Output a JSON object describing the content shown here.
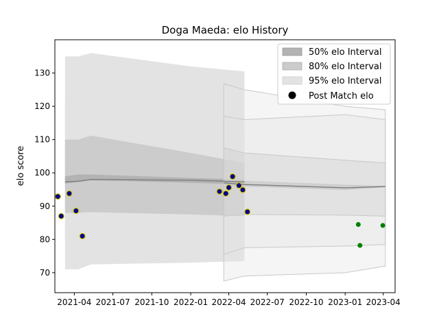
{
  "chart_data": {
    "type": "area",
    "title": "Doga Maeda: elo History",
    "xlabel": "",
    "ylabel": "elo score",
    "xlim": [
      "2021-02-14",
      "2023-04-29"
    ],
    "ylim": [
      64,
      140
    ],
    "x_ticks": [
      "2021-04",
      "2021-07",
      "2021-10",
      "2022-01",
      "2022-04",
      "2022-07",
      "2022-10",
      "2023-01",
      "2023-04"
    ],
    "y_ticks": [
      70,
      80,
      90,
      100,
      110,
      120,
      130
    ],
    "grid": false,
    "legend_position": "top-right",
    "legend": [
      "50% elo Interval",
      "80% elo Interval",
      "95% elo Interval",
      "Post Match elo"
    ],
    "colors": {
      "band50": "#b3b3b3",
      "band80": "#cccccc",
      "band95": "#e3e3e3",
      "mean_line": "#808080",
      "match_point": "#00008b",
      "match_edge": "#d4c400",
      "future_point": "#008000"
    },
    "intervals": {
      "x": [
        "2021-03-10",
        "2021-04-10",
        "2021-05-10",
        "2022-01-01",
        "2022-05-08"
      ],
      "mean": [
        97.3,
        97.5,
        98.0,
        97.8,
        97.3
      ],
      "p50_low": [
        99.0,
        99.5,
        99.5,
        98.5,
        98.0
      ],
      "p50_high": [
        96.8,
        97.2,
        97.8,
        97.0,
        96.5
      ],
      "p80_low": [
        88.0,
        88.0,
        88.2,
        87.5,
        87.0
      ],
      "p80_high": [
        110.0,
        110.0,
        111.2,
        106.0,
        103.0
      ],
      "p95_low": [
        79.0,
        79.0,
        77.5,
        77.0,
        76.5
      ],
      "p95_high": [
        122.0,
        122.0,
        124.2,
        118.0,
        113.0
      ],
      "p99_low": [
        71.0,
        71.0,
        72.5,
        73.0,
        73.5
      ],
      "p99_high": [
        135.0,
        135.0,
        136.0,
        132.0,
        130.5
      ]
    },
    "projection": {
      "x": [
        "2022-03-20",
        "2022-05-08",
        "2023-01-01",
        "2023-04-06"
      ],
      "mean": [
        97.0,
        96.5,
        95.5,
        95.9
      ],
      "p50": [
        [
          97.5,
          96.5
        ],
        [
          97.5,
          96.0
        ],
        [
          96.3,
          95.0
        ],
        [
          96.0,
          95.8
        ]
      ],
      "p80": [
        [
          107.5,
          87.0
        ],
        [
          106.0,
          87.5
        ],
        [
          103.8,
          87.3
        ],
        [
          103.0,
          87.0
        ]
      ],
      "p95": [
        [
          117.0,
          75.5
        ],
        [
          116.0,
          77.5
        ],
        [
          117.5,
          78.0
        ],
        [
          116.0,
          78.5
        ]
      ],
      "p99": [
        [
          126.8,
          67.5
        ],
        [
          125.0,
          69.0
        ],
        [
          120.0,
          70.0
        ],
        [
          119.0,
          72.0
        ]
      ]
    },
    "post_match_elo": [
      {
        "x": "2021-02-21",
        "y": 92.9
      },
      {
        "x": "2021-03-01",
        "y": 87.0
      },
      {
        "x": "2021-03-20",
        "y": 93.8
      },
      {
        "x": "2021-04-05",
        "y": 88.6
      },
      {
        "x": "2021-04-20",
        "y": 81.0
      },
      {
        "x": "2022-03-10",
        "y": 94.4
      },
      {
        "x": "2022-03-25",
        "y": 93.8
      },
      {
        "x": "2022-04-01",
        "y": 95.6
      },
      {
        "x": "2022-04-10",
        "y": 98.9
      },
      {
        "x": "2022-04-25",
        "y": 96.2
      },
      {
        "x": "2022-05-04",
        "y": 94.9
      },
      {
        "x": "2022-05-15",
        "y": 88.3
      }
    ],
    "future_points": [
      {
        "x": "2023-02-01",
        "y": 84.5
      },
      {
        "x": "2023-02-05",
        "y": 78.2
      },
      {
        "x": "2023-03-31",
        "y": 84.2
      }
    ]
  }
}
